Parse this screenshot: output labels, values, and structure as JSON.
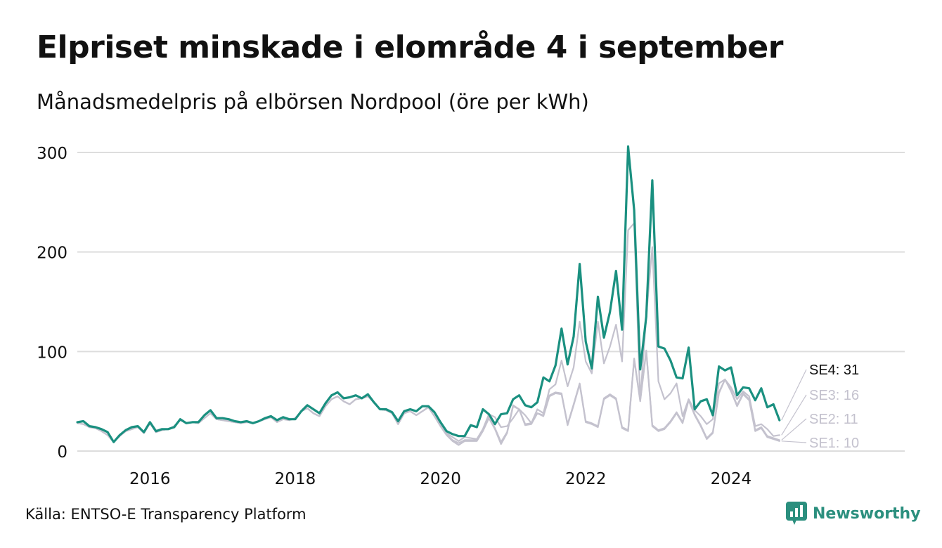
{
  "title": "Elpriset minskade i elområde 4 i september",
  "subtitle": "Månadsmedelpris på elbörsen Nordpool (öre per kWh)",
  "source": "Källa: ENTSO-E Transparency Platform",
  "brand": {
    "name": "Newsworthy",
    "icon": "newsworthy-logo-icon"
  },
  "colors": {
    "highlight": "#1a9080",
    "muted": "#c4c2ce",
    "grid": "#dddddd"
  },
  "chart_data": {
    "type": "line",
    "x_start": "2015-01",
    "x_label_years": [
      2016,
      2018,
      2020,
      2022,
      2024
    ],
    "ylim": [
      0,
      310
    ],
    "yticks": [
      0,
      100,
      200,
      300
    ],
    "grid": true,
    "series": [
      {
        "name": "SE1",
        "end_label": "SE1: 10",
        "highlight": false,
        "values": [
          28,
          27,
          24,
          23,
          20,
          16,
          9,
          15,
          20,
          22,
          24,
          18,
          28,
          19,
          21,
          22,
          25,
          31,
          28,
          29,
          28,
          33,
          38,
          32,
          31,
          30,
          29,
          28,
          29,
          28,
          30,
          32,
          34,
          29,
          32,
          31,
          33,
          40,
          43,
          38,
          35,
          45,
          52,
          55,
          50,
          47,
          52,
          53,
          55,
          49,
          42,
          41,
          38,
          27,
          38,
          40,
          36,
          40,
          44,
          35,
          25,
          16,
          10,
          6,
          10,
          10,
          10,
          20,
          33,
          22,
          7,
          18,
          45,
          42,
          26,
          27,
          38,
          35,
          55,
          58,
          57,
          26,
          46,
          67,
          29,
          27,
          24,
          52,
          56,
          52,
          23,
          20,
          92,
          50,
          100,
          25,
          20,
          22,
          29,
          38,
          28,
          51,
          36,
          25,
          12,
          18,
          58,
          72,
          60,
          45,
          57,
          51,
          20,
          23,
          14,
          12,
          10
        ]
      },
      {
        "name": "SE2",
        "end_label": "SE2: 11",
        "highlight": false,
        "values": [
          28,
          27,
          24,
          23,
          20,
          16,
          9,
          15,
          20,
          22,
          24,
          18,
          28,
          19,
          21,
          22,
          25,
          31,
          28,
          29,
          28,
          33,
          38,
          32,
          31,
          30,
          29,
          28,
          29,
          28,
          30,
          32,
          34,
          29,
          32,
          31,
          33,
          40,
          43,
          38,
          35,
          45,
          52,
          55,
          50,
          47,
          52,
          53,
          55,
          49,
          42,
          41,
          38,
          27,
          38,
          40,
          36,
          40,
          44,
          35,
          25,
          17,
          11,
          8,
          11,
          11,
          11,
          21,
          34,
          23,
          9,
          19,
          46,
          42,
          27,
          28,
          38,
          36,
          56,
          59,
          58,
          27,
          47,
          68,
          30,
          28,
          25,
          53,
          57,
          53,
          24,
          21,
          93,
          51,
          101,
          26,
          21,
          23,
          30,
          39,
          29,
          52,
          37,
          26,
          13,
          19,
          59,
          72,
          61,
          46,
          58,
          52,
          21,
          24,
          15,
          13,
          11
        ]
      },
      {
        "name": "SE3",
        "end_label": "SE3: 16",
        "highlight": false,
        "values": [
          28,
          27,
          24,
          23,
          20,
          16,
          9,
          15,
          20,
          22,
          24,
          18,
          28,
          19,
          21,
          22,
          25,
          31,
          28,
          29,
          28,
          33,
          38,
          32,
          31,
          30,
          29,
          28,
          29,
          28,
          30,
          32,
          34,
          29,
          32,
          31,
          33,
          40,
          43,
          38,
          35,
          45,
          52,
          55,
          50,
          47,
          52,
          53,
          55,
          49,
          42,
          41,
          38,
          27,
          38,
          40,
          36,
          40,
          44,
          35,
          26,
          18,
          14,
          10,
          14,
          13,
          12,
          22,
          37,
          34,
          24,
          25,
          33,
          42,
          36,
          28,
          42,
          38,
          62,
          67,
          91,
          65,
          84,
          130,
          90,
          78,
          130,
          88,
          105,
          127,
          90,
          222,
          229,
          51,
          135,
          205,
          70,
          52,
          58,
          68,
          35,
          52,
          41,
          35,
          27,
          32,
          68,
          72,
          64,
          52,
          60,
          55,
          25,
          27,
          22,
          15,
          16
        ]
      },
      {
        "name": "SE4",
        "end_label": "SE4: 31",
        "highlight": true,
        "values": [
          29,
          30,
          25,
          24,
          22,
          19,
          9,
          16,
          21,
          24,
          25,
          19,
          29,
          20,
          22,
          22,
          24,
          32,
          28,
          29,
          29,
          36,
          41,
          33,
          33,
          32,
          30,
          29,
          30,
          28,
          30,
          33,
          35,
          31,
          34,
          32,
          32,
          40,
          46,
          42,
          38,
          48,
          56,
          59,
          53,
          54,
          56,
          53,
          57,
          49,
          42,
          42,
          39,
          30,
          40,
          42,
          40,
          45,
          45,
          39,
          29,
          20,
          17,
          15,
          15,
          26,
          24,
          42,
          37,
          27,
          37,
          38,
          52,
          56,
          46,
          44,
          49,
          74,
          70,
          86,
          123,
          87,
          115,
          188,
          110,
          83,
          155,
          114,
          140,
          181,
          122,
          306,
          242,
          82,
          135,
          272,
          105,
          103,
          91,
          74,
          73,
          104,
          42,
          50,
          52,
          36,
          85,
          81,
          84,
          56,
          64,
          63,
          51,
          63,
          44,
          47,
          31
        ]
      }
    ]
  }
}
